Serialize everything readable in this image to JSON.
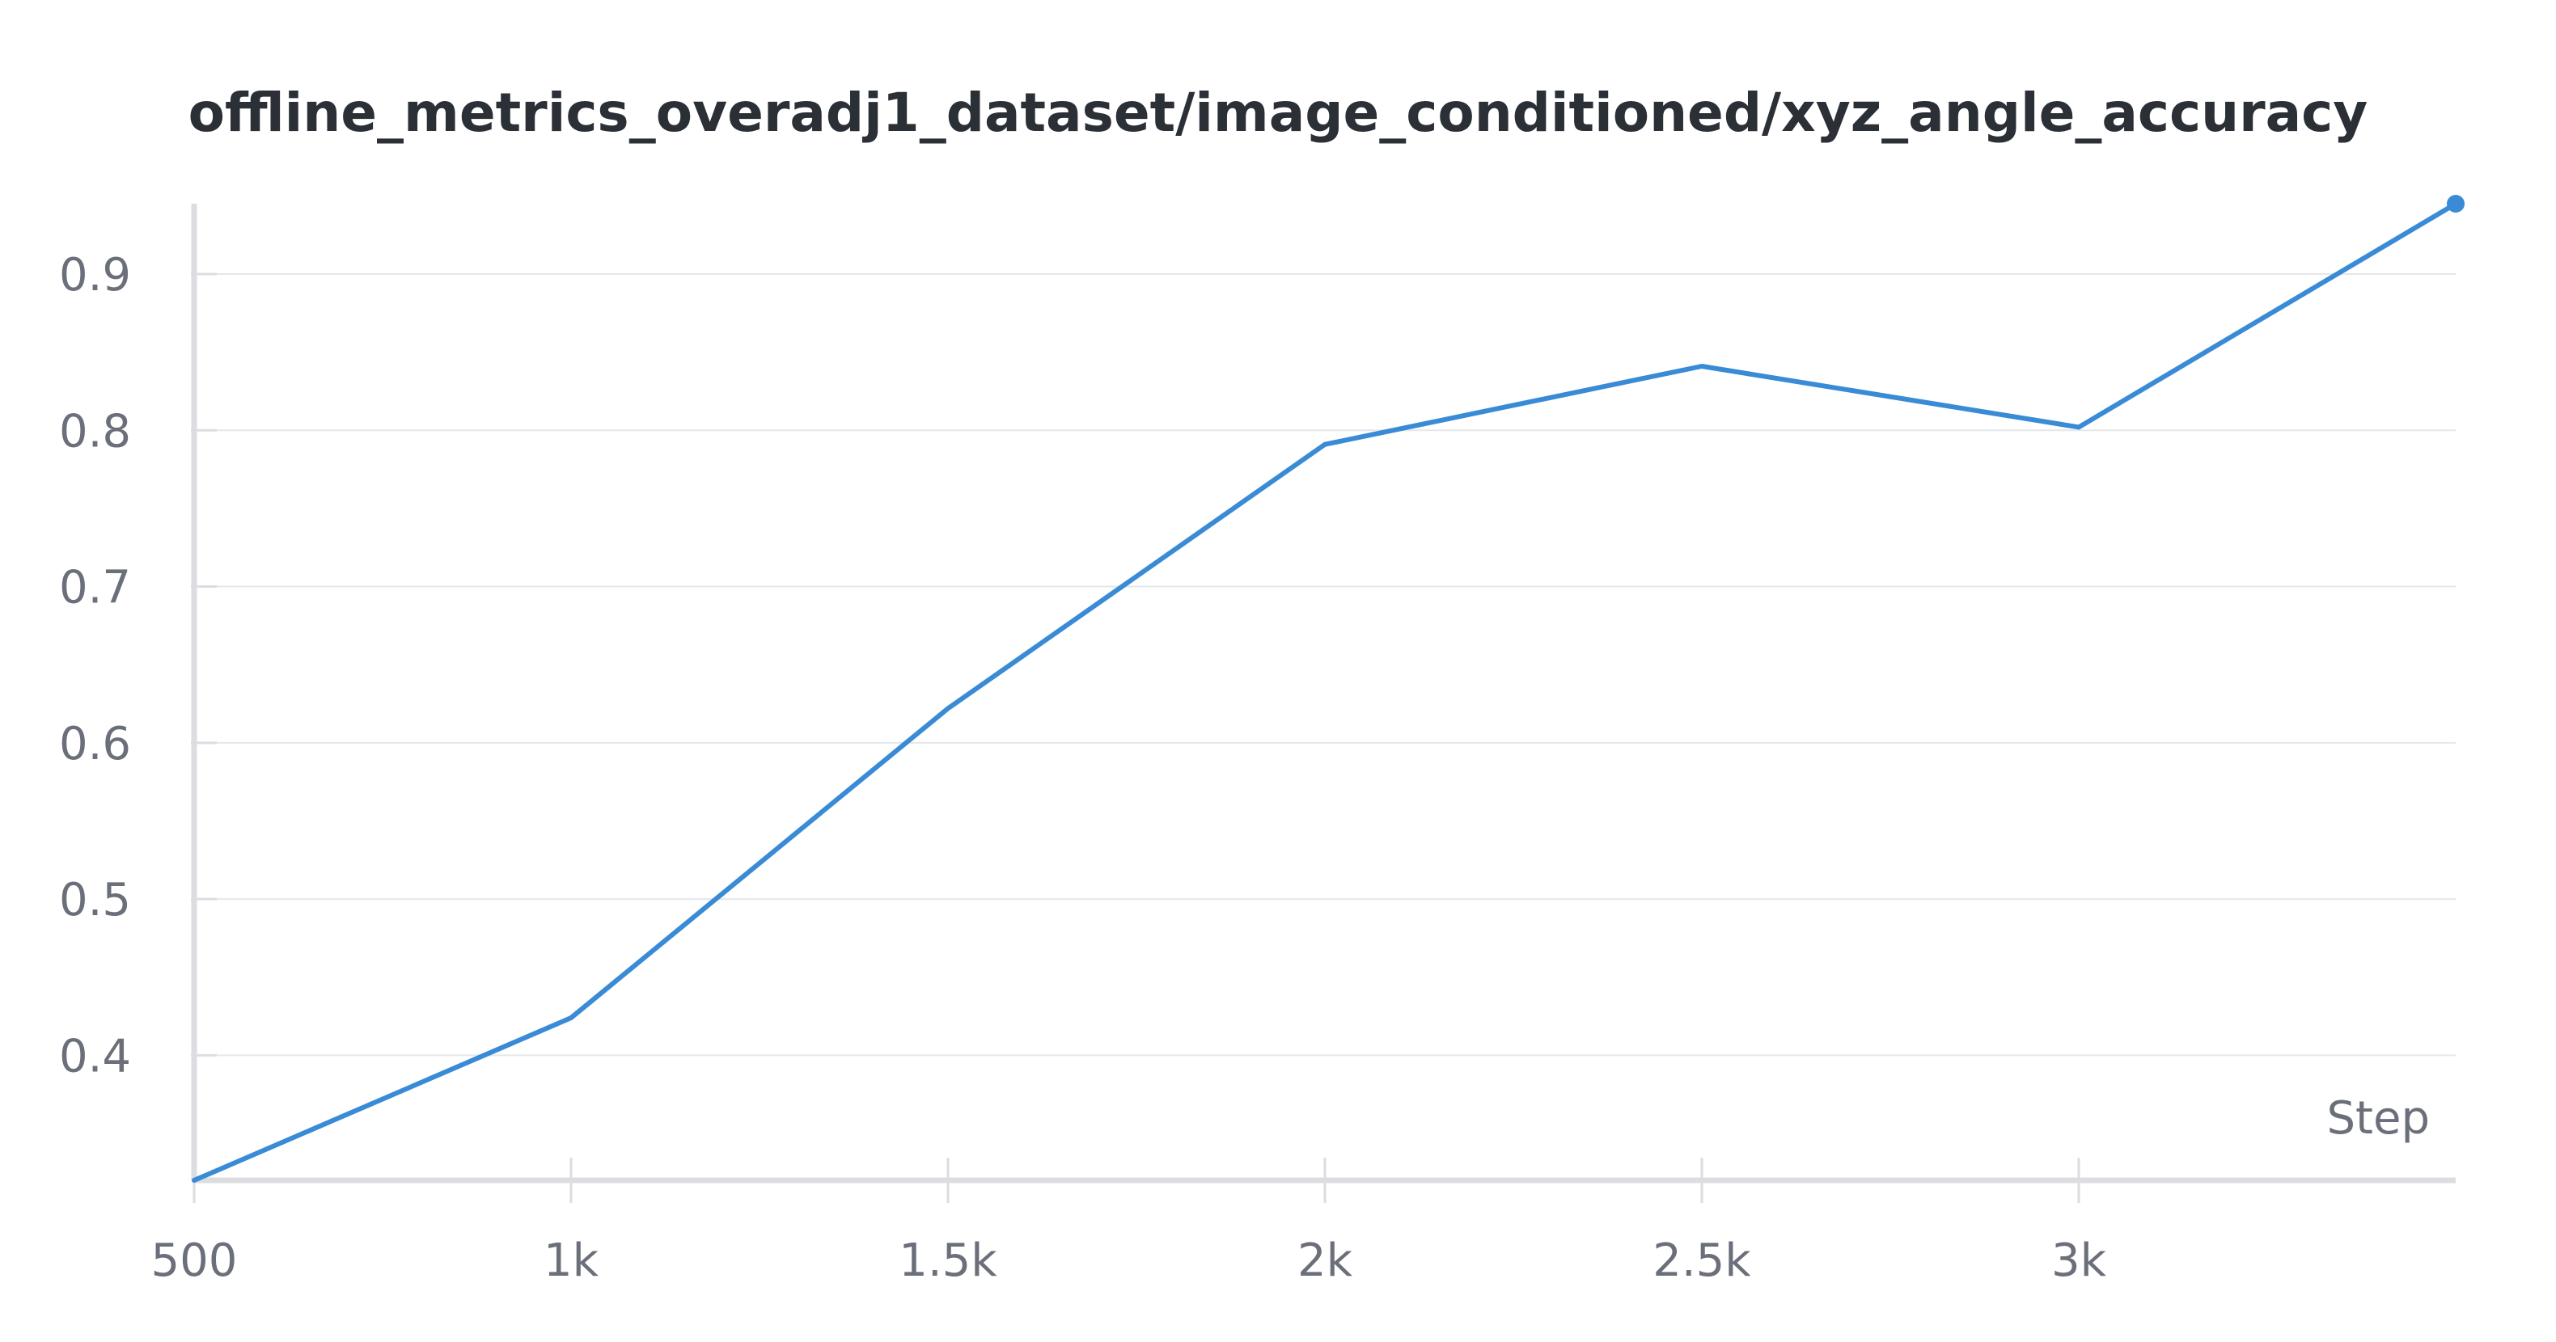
{
  "chart_data": {
    "type": "line",
    "title": "offline_metrics_overadj1_dataset/image_conditioned/xyz_angle_accuracy",
    "xlabel": "Step",
    "ylabel": "",
    "x_ticks": [
      {
        "value": 500,
        "label": "500"
      },
      {
        "value": 1000,
        "label": "1k"
      },
      {
        "value": 1500,
        "label": "1.5k"
      },
      {
        "value": 2000,
        "label": "2k"
      },
      {
        "value": 2500,
        "label": "2.5k"
      },
      {
        "value": 3000,
        "label": "3k"
      }
    ],
    "y_ticks": [
      {
        "value": 0.4,
        "label": "0.4"
      },
      {
        "value": 0.5,
        "label": "0.5"
      },
      {
        "value": 0.6,
        "label": "0.6"
      },
      {
        "value": 0.7,
        "label": "0.7"
      },
      {
        "value": 0.8,
        "label": "0.8"
      },
      {
        "value": 0.9,
        "label": "0.9"
      }
    ],
    "xlim": [
      500,
      3500
    ],
    "ylim": [
      0.32,
      0.945
    ],
    "grid": true,
    "series": [
      {
        "color": "#3a8bd6",
        "x": [
          500,
          1000,
          1500,
          2000,
          2500,
          3000,
          3500
        ],
        "y": [
          0.32,
          0.424,
          0.622,
          0.791,
          0.841,
          0.802,
          0.945
        ]
      }
    ]
  }
}
